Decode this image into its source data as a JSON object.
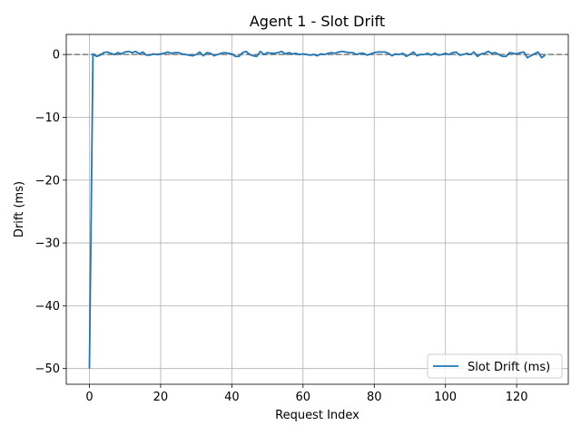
{
  "chart_data": {
    "type": "line",
    "title": "Agent 1 - Slot Drift",
    "xlabel": "Request Index",
    "ylabel": "Drift (ms)",
    "xlim": [
      -6.5,
      134.5
    ],
    "ylim": [
      -52.5,
      3.2
    ],
    "xticks": [
      0,
      20,
      40,
      60,
      80,
      100,
      120
    ],
    "yticks": [
      0,
      -10,
      -20,
      -30,
      -40,
      -50
    ],
    "xtick_labels": [
      "0",
      "20",
      "40",
      "60",
      "80",
      "100",
      "120"
    ],
    "ytick_labels": [
      "0",
      "−10",
      "−20",
      "−30",
      "−40",
      "−50"
    ],
    "grid": true,
    "legend_position": "lower-right",
    "reference_line": {
      "y": 0,
      "style": "dashed",
      "color": "#808080"
    },
    "series": [
      {
        "name": "Slot Drift (ms)",
        "color": "#1f77b4",
        "x": [
          0,
          1,
          2,
          3,
          4,
          5,
          6,
          7,
          8,
          9,
          10,
          11,
          12,
          13,
          14,
          15,
          16,
          17,
          18,
          19,
          20,
          21,
          22,
          23,
          24,
          25,
          26,
          27,
          28,
          29,
          30,
          31,
          32,
          33,
          34,
          35,
          36,
          37,
          38,
          39,
          40,
          41,
          42,
          43,
          44,
          45,
          46,
          47,
          48,
          49,
          50,
          51,
          52,
          53,
          54,
          55,
          56,
          57,
          58,
          59,
          60,
          61,
          62,
          63,
          64,
          65,
          66,
          67,
          68,
          69,
          70,
          71,
          72,
          73,
          74,
          75,
          76,
          77,
          78,
          79,
          80,
          81,
          82,
          83,
          84,
          85,
          86,
          87,
          88,
          89,
          90,
          91,
          92,
          93,
          94,
          95,
          96,
          97,
          98,
          99,
          100,
          101,
          102,
          103,
          104,
          105,
          106,
          107,
          108,
          109,
          110,
          111,
          112,
          113,
          114,
          115,
          116,
          117,
          118,
          119,
          120,
          121,
          122,
          123,
          124,
          125,
          126,
          127,
          128
        ],
        "values": [
          -50,
          0.1,
          -0.3,
          -0.1,
          0.3,
          0.4,
          0.2,
          0,
          0.3,
          0.1,
          0.4,
          0.5,
          0.3,
          0.5,
          0.1,
          0.4,
          -0.1,
          -0.1,
          0.1,
          0,
          0.1,
          0.2,
          0.4,
          0.2,
          0.3,
          0.3,
          0.1,
          0,
          -0.1,
          -0.2,
          0,
          0.4,
          -0.2,
          0.3,
          0.2,
          -0.2,
          0,
          0.2,
          0.3,
          0.2,
          0.1,
          -0.3,
          -0.3,
          0.3,
          0.5,
          0,
          -0.2,
          -0.3,
          0.5,
          0,
          0.3,
          0.2,
          0.2,
          0.3,
          0.5,
          0.1,
          0.3,
          0.1,
          0.2,
          0,
          0.1,
          0,
          -0.1,
          0,
          -0.2,
          0.1,
          0,
          0.2,
          0.3,
          0.2,
          0.4,
          0.5,
          0.4,
          0.3,
          0.3,
          0,
          0.2,
          0.2,
          -0.1,
          0.1,
          0.3,
          0.4,
          0.4,
          0.4,
          0.2,
          -0.2,
          0.1,
          0,
          0.2,
          -0.3,
          0,
          0.4,
          -0.2,
          0,
          0,
          0.2,
          -0.1,
          0.2,
          -0.1,
          0,
          0.2,
          0,
          0.3,
          0.4,
          -0.1,
          0,
          0.2,
          0,
          0.4,
          -0.3,
          0.1,
          0.2,
          0.5,
          0.2,
          0.3,
          0,
          -0.3,
          -0.3,
          0.3,
          0.2,
          0.1,
          0.3,
          0.4,
          -0.5,
          -0.2,
          0.1,
          0.4,
          -0.5,
          -0.1
        ]
      }
    ]
  }
}
